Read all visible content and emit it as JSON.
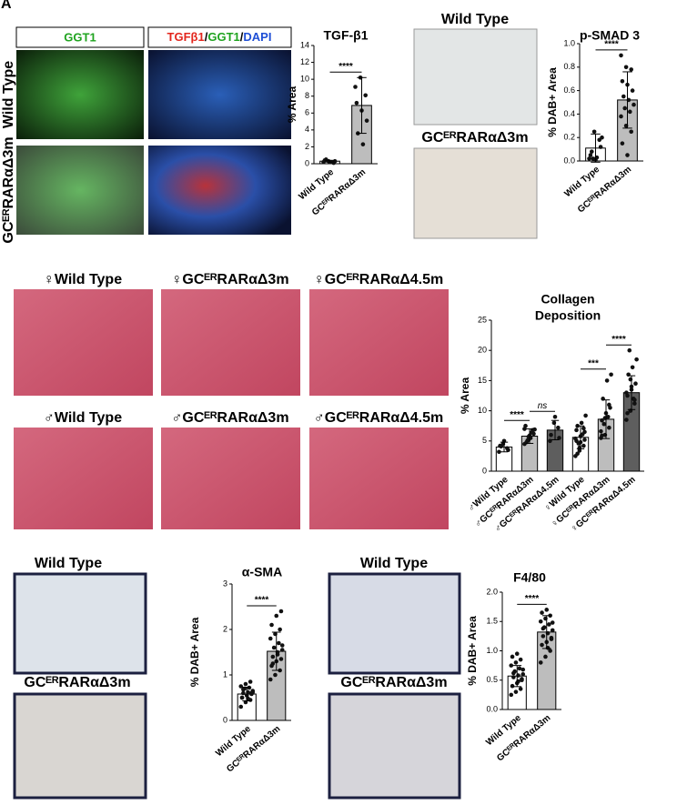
{
  "panel_label": "A",
  "images": {
    "fluor_headers": [
      "GGT1",
      [
        {
          "text": "TGFβ1",
          "color": "#e3261d"
        },
        {
          "text": "/",
          "color": "#000000"
        },
        {
          "text": "GGT1",
          "color": "#1fa31f"
        },
        {
          "text": "/",
          "color": "#000000"
        },
        {
          "text": "DAPI",
          "color": "#1f4fd6"
        }
      ]
    ],
    "fluor_rows": [
      "Wild Type",
      "GCᴱᴿRARαΔ3m"
    ],
    "psmad_titles": [
      "Wild Type",
      "GCᴱᴿRARαΔ3m"
    ],
    "trichrome_titles": [
      "♀Wild Type",
      "♀GCᴱᴿRARαΔ3m",
      "♀GCᴱᴿRARαΔ4.5m",
      "♂Wild Type",
      "♂GCᴱᴿRARαΔ3m",
      "♂GCᴱᴿRARαΔ4.5m"
    ],
    "sma_titles": [
      "Wild Type",
      "GCᴱᴿRARαΔ3m"
    ],
    "f480_titles": [
      "Wild Type",
      "GCᴱᴿRARαΔ3m"
    ]
  },
  "chart_data": [
    {
      "type": "bar",
      "title": "TGF-β1",
      "ylabel": "% Area",
      "categories": [
        "Wild Type",
        "GCᴱᴿRARαΔ3m"
      ],
      "values": [
        0.3,
        6.9
      ],
      "errors": [
        0.1,
        3.3
      ],
      "colors": [
        "#ffffff",
        "#bdbdbd"
      ],
      "points": [
        [
          0.2,
          0.3,
          0.1,
          0.4,
          0.2,
          0.3,
          0.5,
          0.2
        ],
        [
          9.1,
          10.2,
          8.1,
          7.2,
          6.3,
          5.1,
          3.6,
          2.3
        ]
      ],
      "brackets": [
        "****"
      ],
      "ylim": [
        0,
        14
      ],
      "yticks": [
        0,
        2,
        4,
        6,
        8,
        10,
        12,
        14
      ]
    },
    {
      "type": "bar",
      "title": "p-SMAD 3",
      "ylabel": "% DAB+ Area",
      "categories": [
        "Wild Type",
        "GCᴱᴿRARαΔ3m"
      ],
      "values": [
        0.11,
        0.52
      ],
      "errors": [
        0.12,
        0.24
      ],
      "colors": [
        "#ffffff",
        "#bdbdbd"
      ],
      "points": [
        [
          0.02,
          0.25,
          0.18,
          0.05,
          0.01,
          0.12,
          0.08,
          0.03,
          0.2,
          0.02
        ],
        [
          0.9,
          0.8,
          0.78,
          0.68,
          0.65,
          0.6,
          0.55,
          0.52,
          0.48,
          0.45,
          0.42,
          0.38,
          0.3,
          0.25,
          0.15,
          0.05
        ]
      ],
      "brackets": [
        "****"
      ],
      "ylim": [
        0,
        1.0
      ],
      "yticks": [
        {
          "value": 0,
          "label": "0.0"
        },
        {
          "value": 0.2,
          "label": "0.2"
        },
        {
          "value": 0.4,
          "label": "0.4"
        },
        {
          "value": 0.6,
          "label": "0.6"
        },
        {
          "value": 0.8,
          "label": "0.8"
        },
        {
          "value": 1.0,
          "label": "1.0"
        }
      ]
    },
    {
      "type": "bar",
      "title": [
        "Collagen",
        "Deposition"
      ],
      "ylabel": "% Area",
      "categories": [
        "♂Wild Type",
        "♂GCᴱᴿRARαΔ3m",
        "♂GCᴱᴿRARαΔ4.5m",
        "♀Wild Type",
        "♀GCᴱᴿRARαΔ3m",
        "♀GCᴱᴿRARαΔ4.5m"
      ],
      "values": [
        4.0,
        5.8,
        6.8,
        5.6,
        8.6,
        13.0
      ],
      "errors": [
        0.8,
        1.2,
        1.6,
        1.9,
        3.2,
        2.8
      ],
      "colors": [
        "#ffffff",
        "#bdbdbd",
        "#5e5e5e",
        "#ffffff",
        "#bdbdbd",
        "#5e5e5e"
      ],
      "points": [
        [
          3.2,
          4.5,
          3.8,
          4.2,
          5.0,
          3.5,
          4.1
        ],
        [
          4.5,
          5.2,
          6.8,
          7.5,
          5.9,
          6.2,
          4.8,
          5.5,
          6.9,
          5.1,
          6.4,
          7.0,
          5.7
        ],
        [
          5.0,
          8.0,
          7.2,
          6.0,
          9.0,
          5.5
        ],
        [
          2.5,
          3.4,
          4.2,
          5.0,
          5.8,
          6.5,
          7.5,
          8.0,
          9.2,
          4.6,
          6.1,
          5.4,
          3.9,
          7.1,
          6.8,
          4.8,
          5.2,
          2.9
        ],
        [
          5.5,
          6.0,
          7.2,
          8.4,
          9.6,
          10.5,
          12.0,
          15.0,
          16.0,
          7.8,
          9.0,
          6.6,
          8.8,
          11.0,
          5.9
        ],
        [
          8.5,
          10.0,
          11.2,
          12.5,
          13.5,
          14.5,
          16.0,
          17.2,
          18.5,
          20.0,
          12.0,
          13.0,
          15.2,
          11.8,
          9.6,
          14.0
        ]
      ],
      "brackets": [
        "****",
        "ns",
        null,
        "***",
        "****"
      ],
      "ylim": [
        0,
        25
      ],
      "yticks": [
        0,
        5,
        10,
        15,
        20,
        25
      ]
    },
    {
      "type": "bar",
      "title": "α-SMA",
      "ylabel": "% DAB+ Area",
      "categories": [
        "Wild Type",
        "GCᴱᴿRARαΔ3m"
      ],
      "values": [
        0.58,
        1.52
      ],
      "errors": [
        0.15,
        0.42
      ],
      "colors": [
        "#ffffff",
        "#bdbdbd"
      ],
      "points": [
        [
          0.3,
          0.4,
          0.45,
          0.5,
          0.55,
          0.58,
          0.6,
          0.62,
          0.65,
          0.7,
          0.72,
          0.75,
          0.8,
          0.85,
          0.5,
          0.55,
          0.6,
          0.68,
          0.48,
          0.62
        ],
        [
          0.9,
          1.0,
          1.1,
          1.2,
          1.3,
          1.35,
          1.4,
          1.5,
          1.55,
          1.6,
          1.7,
          1.8,
          1.9,
          2.0,
          2.1,
          2.3,
          2.4,
          1.25,
          1.45,
          1.65
        ]
      ],
      "brackets": [
        "****"
      ],
      "ylim": [
        0,
        3
      ],
      "yticks": [
        0,
        1,
        2,
        3
      ]
    },
    {
      "type": "bar",
      "title": "F4/80",
      "ylabel": "% DAB+ Area",
      "categories": [
        "Wild Type",
        "GCᴱᴿRARαΔ3m"
      ],
      "values": [
        0.57,
        1.32
      ],
      "errors": [
        0.18,
        0.28
      ],
      "colors": [
        "#ffffff",
        "#bdbdbd"
      ],
      "points": [
        [
          0.25,
          0.3,
          0.35,
          0.4,
          0.45,
          0.5,
          0.55,
          0.58,
          0.6,
          0.65,
          0.7,
          0.75,
          0.8,
          0.85,
          0.9,
          0.95,
          0.52,
          0.62,
          0.48,
          0.68
        ],
        [
          0.8,
          0.9,
          1.0,
          1.1,
          1.15,
          1.2,
          1.25,
          1.3,
          1.35,
          1.4,
          1.45,
          1.5,
          1.55,
          1.6,
          1.65,
          1.7,
          1.22,
          1.38,
          1.05,
          1.48
        ]
      ],
      "brackets": [
        "****"
      ],
      "ylim": [
        0,
        2.0
      ],
      "yticks": [
        {
          "value": 0,
          "label": "0.0"
        },
        {
          "value": 0.5,
          "label": "0.5"
        },
        {
          "value": 1.0,
          "label": "1.0"
        },
        {
          "value": 1.5,
          "label": "1.5"
        },
        {
          "value": 2.0,
          "label": "2.0"
        }
      ]
    }
  ]
}
